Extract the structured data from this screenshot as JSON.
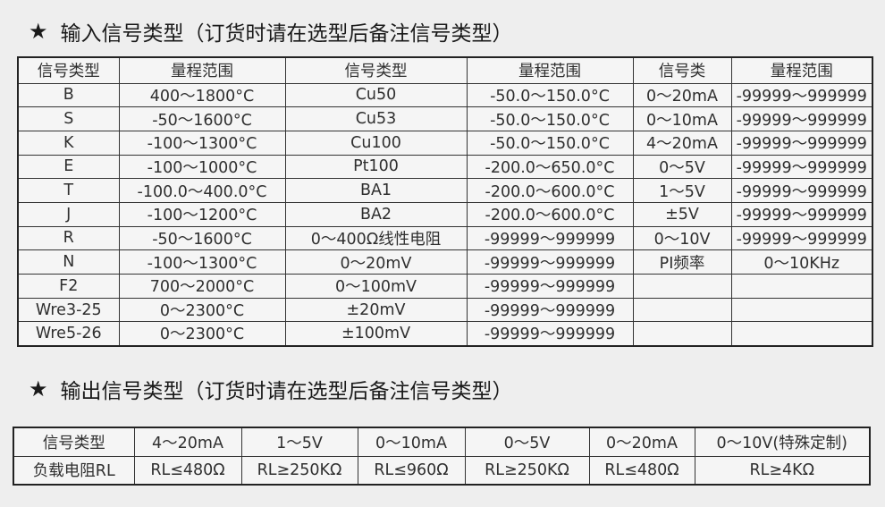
{
  "input_section": {
    "star": "★",
    "title": "输入信号类型（订货时请在选型后备注信号类型）",
    "headers": [
      "信号类型",
      "量程范围",
      "信号类型",
      "量程范围",
      "信号类",
      "量程范围"
    ],
    "rows": [
      [
        "B",
        "400～1800°C",
        "Cu50",
        "-50.0～150.0°C",
        "0～20mA",
        "-99999～999999"
      ],
      [
        "S",
        "-50～1600°C",
        "Cu53",
        "-50.0～150.0°C",
        "0～10mA",
        "-99999～999999"
      ],
      [
        "K",
        "-100～1300°C",
        "Cu100",
        "-50.0～150.0°C",
        "4～20mA",
        "-99999～999999"
      ],
      [
        "E",
        "-100～1000°C",
        "Pt100",
        "-200.0～650.0°C",
        "0～5V",
        "-99999～999999"
      ],
      [
        "T",
        "-100.0～400.0°C",
        "BA1",
        "-200.0～600.0°C",
        "1～5V",
        "-99999～999999"
      ],
      [
        "J",
        "-100～1200°C",
        "BA2",
        "-200.0～600.0°C",
        "±5V",
        "-99999～999999"
      ],
      [
        "R",
        "-50～1600°C",
        "0～400Ω线性电阻",
        "-99999～999999",
        "0～10V",
        "-99999～999999"
      ],
      [
        "N",
        "-100～1300°C",
        "0～20mV",
        "-99999～999999",
        "PI频率",
        "0～10KHz"
      ],
      [
        "F2",
        "700～2000°C",
        "0～100mV",
        "-99999～999999",
        "",
        ""
      ],
      [
        "Wre3-25",
        "0～2300°C",
        "±20mV",
        "-99999～999999",
        "",
        ""
      ],
      [
        "Wre5-26",
        "0～2300°C",
        "±100mV",
        "-99999～999999",
        "",
        ""
      ]
    ]
  },
  "output_section": {
    "star": "★",
    "title": "输出信号类型（订货时请在选型后备注信号类型）",
    "rows": [
      [
        "信号类型",
        "4～20mA",
        "1～5V",
        "0～10mA",
        "0～5V",
        "0～20mA",
        "0～10V(特殊定制)"
      ],
      [
        "负载电阻RL",
        "RL≤480Ω",
        "RL≥250KΩ",
        "RL≤960Ω",
        "RL≥250KΩ",
        "RL≤480Ω",
        "RL≥4KΩ"
      ]
    ]
  }
}
